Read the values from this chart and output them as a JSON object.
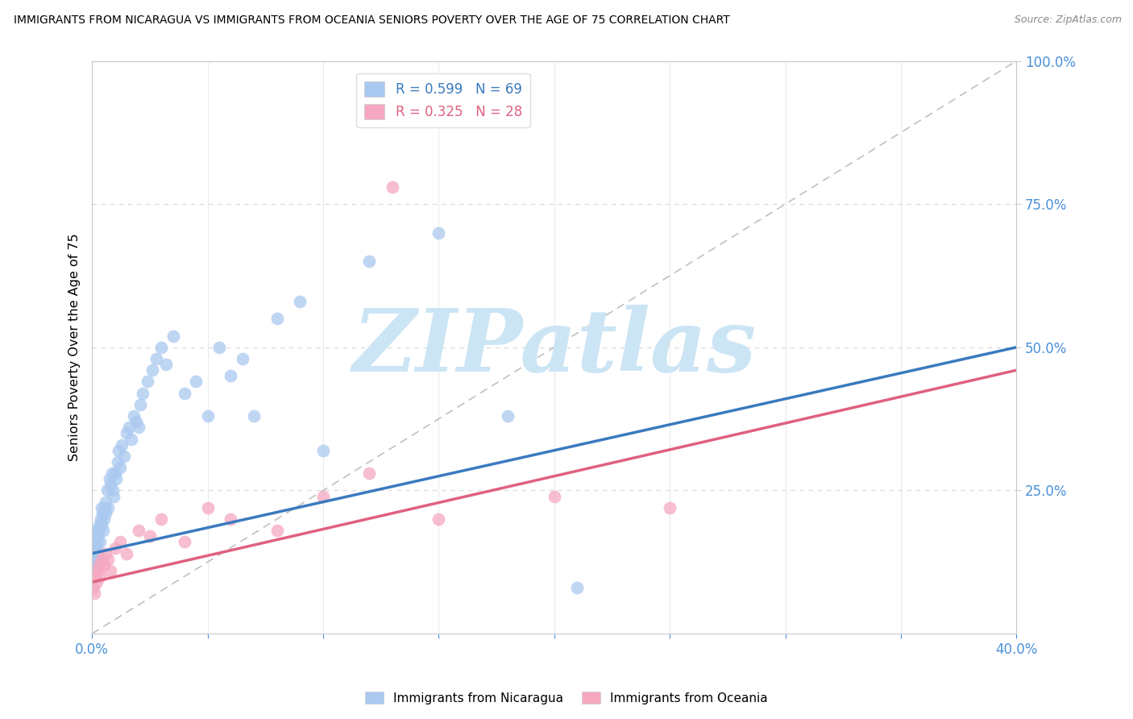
{
  "title": "IMMIGRANTS FROM NICARAGUA VS IMMIGRANTS FROM OCEANIA SENIORS POVERTY OVER THE AGE OF 75 CORRELATION CHART",
  "source": "Source: ZipAtlas.com",
  "ylabel": "Seniors Poverty Over the Age of 75",
  "xmin": 0.0,
  "xmax": 40.0,
  "ymin": 0.0,
  "ymax": 100.0,
  "R_nicaragua": 0.599,
  "N_nicaragua": 69,
  "R_oceania": 0.325,
  "N_oceania": 28,
  "color_nicaragua": "#aac9f0",
  "color_oceania": "#f5a8c0",
  "line_color_nicaragua": "#3a7abf",
  "line_color_oceania": "#e06080",
  "watermark_text": "ZIPatlas",
  "watermark_color": "#cce5f5",
  "legend_label_nicaragua": "Immigrants from Nicaragua",
  "legend_label_oceania": "Immigrants from Oceania",
  "nic_line_x0": 0.0,
  "nic_line_y0": 14.0,
  "nic_line_x1": 40.0,
  "nic_line_y1": 50.0,
  "oce_line_x0": 0.0,
  "oce_line_y0": 9.0,
  "oce_line_x1": 40.0,
  "oce_line_y1": 46.0,
  "nic_x": [
    0.05,
    0.08,
    0.1,
    0.12,
    0.14,
    0.16,
    0.18,
    0.2,
    0.22,
    0.25,
    0.28,
    0.3,
    0.32,
    0.35,
    0.38,
    0.4,
    0.42,
    0.45,
    0.48,
    0.5,
    0.55,
    0.58,
    0.6,
    0.65,
    0.7,
    0.75,
    0.8,
    0.85,
    0.9,
    0.95,
    1.0,
    1.05,
    1.1,
    1.15,
    1.2,
    1.3,
    1.4,
    1.5,
    1.6,
    1.7,
    1.8,
    1.9,
    2.0,
    2.1,
    2.2,
    2.4,
    2.6,
    2.8,
    3.0,
    3.2,
    3.5,
    4.0,
    4.5,
    5.0,
    5.5,
    6.0,
    6.5,
    7.0,
    8.0,
    9.0,
    10.0,
    12.0,
    15.0,
    18.0,
    21.0,
    0.06,
    0.09,
    0.11,
    0.13
  ],
  "nic_y": [
    14,
    13,
    16,
    15,
    12,
    17,
    18,
    15,
    16,
    17,
    14,
    18,
    19,
    16,
    20,
    19,
    22,
    21,
    18,
    20,
    22,
    21,
    23,
    25,
    22,
    27,
    26,
    28,
    25,
    24,
    28,
    27,
    30,
    32,
    29,
    33,
    31,
    35,
    36,
    34,
    38,
    37,
    36,
    40,
    42,
    44,
    46,
    48,
    50,
    47,
    52,
    42,
    44,
    38,
    50,
    45,
    48,
    38,
    55,
    58,
    32,
    65,
    70,
    38,
    8,
    12,
    15,
    14,
    13
  ],
  "oce_x": [
    0.05,
    0.1,
    0.15,
    0.2,
    0.25,
    0.3,
    0.35,
    0.4,
    0.5,
    0.6,
    0.7,
    0.8,
    1.0,
    1.2,
    1.5,
    2.0,
    2.5,
    3.0,
    4.0,
    5.0,
    6.0,
    8.0,
    10.0,
    12.0,
    15.0,
    20.0,
    25.0,
    13.0
  ],
  "oce_y": [
    8,
    7,
    10,
    9,
    11,
    12,
    10,
    13,
    12,
    14,
    13,
    11,
    15,
    16,
    14,
    18,
    17,
    20,
    16,
    22,
    20,
    18,
    24,
    28,
    20,
    24,
    22,
    78
  ]
}
